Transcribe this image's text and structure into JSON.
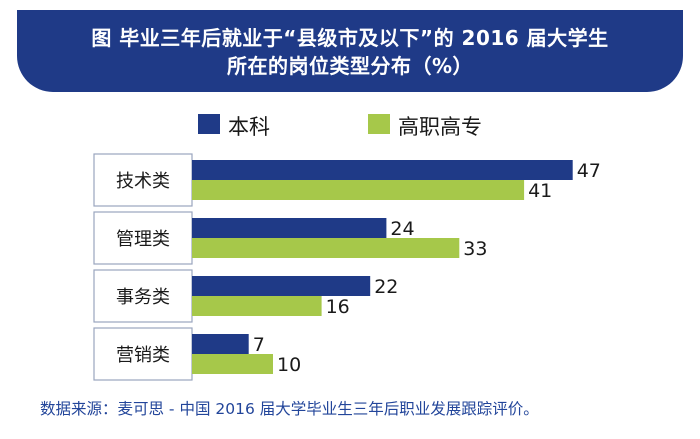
{
  "colors": {
    "banner": "#1f3a87",
    "series_1": "#1f3a87",
    "series_2": "#a6c84a",
    "category_box_border": "#9aa5bf",
    "source_text": "#22459a"
  },
  "source": "数据来源：麦可思 - 中国 2016 届大学毕业生三年后职业发展跟踪评价。",
  "chart_data": {
    "type": "bar",
    "orientation": "horizontal",
    "title_lines": [
      "图  毕业三年后就业于“县级市及以下”的 2016 届大学生",
      "所在的岗位类型分布（%）"
    ],
    "categories": [
      "技术类",
      "管理类",
      "事务类",
      "营销类"
    ],
    "series": [
      {
        "name": "本科",
        "values": [
          47,
          24,
          22,
          7
        ]
      },
      {
        "name": "高职高专",
        "values": [
          41,
          33,
          16,
          10
        ]
      }
    ],
    "legend_position": "top",
    "grid": false,
    "data_labels": true,
    "xlim": [
      0,
      50
    ]
  }
}
